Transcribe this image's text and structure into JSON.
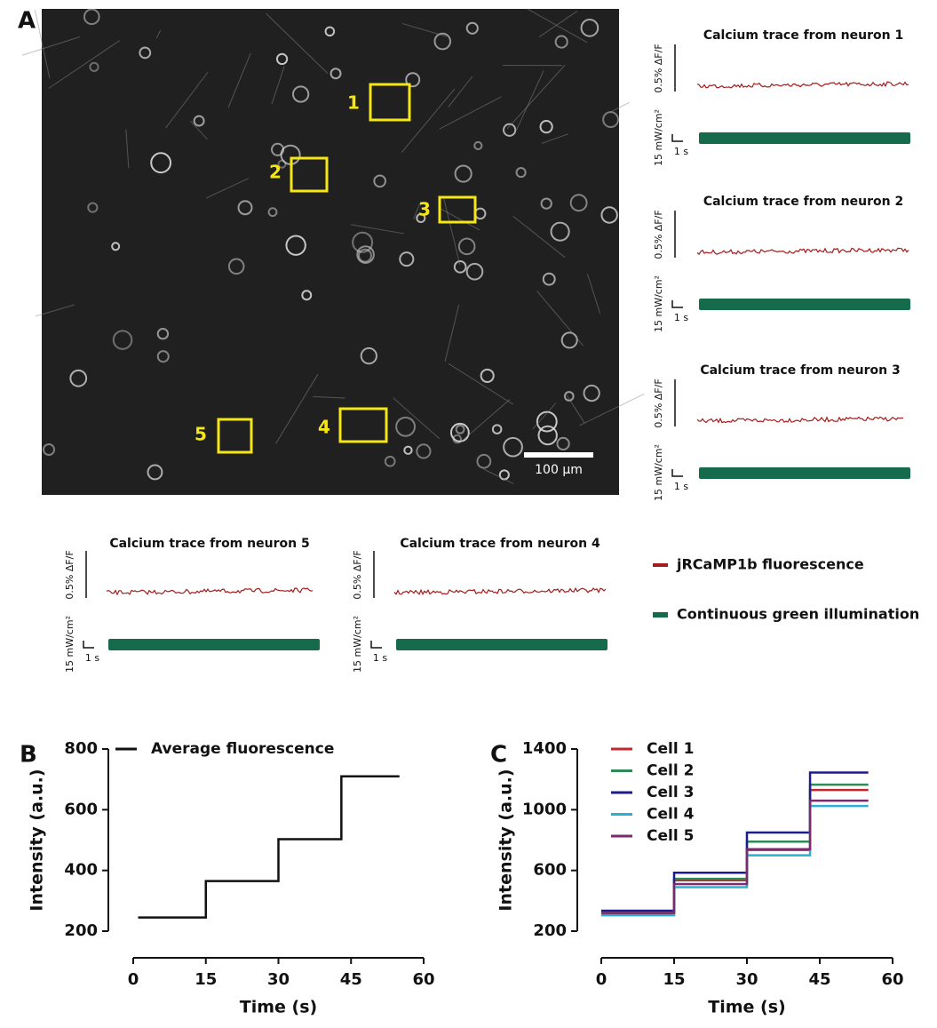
{
  "panel_a": {
    "label": "A",
    "neuron_labels": [
      "1",
      "2",
      "3",
      "4",
      "5"
    ],
    "scale_bar": "100 µm",
    "traces": [
      {
        "title": "Calcium trace from neuron 1"
      },
      {
        "title": "Calcium trace from neuron 2"
      },
      {
        "title": "Calcium trace from neuron 3"
      },
      {
        "title": "Calcium trace from neuron 5"
      },
      {
        "title": "Calcium trace from neuron 4"
      }
    ],
    "df_scale": "0.5% ΔF/F",
    "power_scale": "15 mW/cm²",
    "time_scale": "1 s",
    "legend": [
      "jRCaMP1b fluorescence",
      "Continuous green illumination"
    ]
  },
  "chart_data": [
    {
      "type": "line",
      "panel_label": "B",
      "xlabel": "Time (s)",
      "ylabel": "Intensity (a.u.)",
      "x": [
        1,
        15,
        15,
        30,
        30,
        43,
        43,
        55
      ],
      "series": [
        {
          "name": "Average fluorescence",
          "color": "#111111",
          "values": [
            245,
            245,
            365,
            365,
            503,
            503,
            710,
            710
          ]
        }
      ],
      "xlim": [
        0,
        60
      ],
      "xticks": [
        0,
        15,
        30,
        45,
        60
      ],
      "ylim": [
        200,
        800
      ],
      "yticks": [
        200,
        400,
        600,
        800
      ]
    },
    {
      "type": "line",
      "panel_label": "C",
      "xlabel": "Time (s)",
      "ylabel": "Intensity (a.u.)",
      "x": [
        0,
        15,
        15,
        30,
        30,
        43,
        43,
        55
      ],
      "series": [
        {
          "name": "Cell 1",
          "color": "#c0282e",
          "values": [
            315,
            315,
            535,
            535,
            735,
            735,
            1130,
            1130
          ]
        },
        {
          "name": "Cell 2",
          "color": "#2e8b57",
          "values": [
            320,
            320,
            545,
            545,
            790,
            790,
            1165,
            1165
          ]
        },
        {
          "name": "Cell 3",
          "color": "#1c1c8c",
          "values": [
            335,
            335,
            585,
            585,
            850,
            850,
            1245,
            1245
          ]
        },
        {
          "name": "Cell 4",
          "color": "#2ab0d0",
          "values": [
            305,
            305,
            490,
            490,
            700,
            700,
            1025,
            1025
          ]
        },
        {
          "name": "Cell 5",
          "color": "#7b2a6e",
          "values": [
            320,
            320,
            510,
            510,
            740,
            740,
            1060,
            1060
          ]
        }
      ],
      "xlim": [
        0,
        60
      ],
      "xticks": [
        0,
        15,
        30,
        45,
        60
      ],
      "ylim": [
        200,
        1400
      ],
      "yticks": [
        200,
        600,
        1000,
        1400
      ]
    }
  ]
}
